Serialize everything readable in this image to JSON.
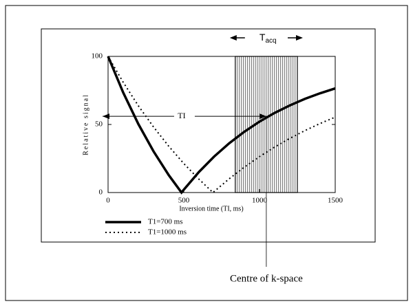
{
  "chart_data": {
    "type": "line",
    "xlabel": "Inversion time (TI, ms)",
    "ylabel": "Relative signal",
    "xlim": [
      0,
      1500
    ],
    "xticks": [
      0,
      500,
      1000,
      1500
    ],
    "ylim": [
      0,
      100
    ],
    "yticks": [
      0,
      50,
      100
    ],
    "series": [
      {
        "name": "T1=700 ms",
        "color": "#000000",
        "style": "solid",
        "x": [
          0,
          100,
          200,
          300,
          400,
          485,
          500,
          600,
          700,
          800,
          900,
          1000,
          1100,
          1200,
          1300,
          1400,
          1500
        ],
        "values": [
          100,
          73.4,
          50.3,
          30.3,
          12.9,
          0,
          2.1,
          15.1,
          26.4,
          36.2,
          44.7,
          52.1,
          58.5,
          64.0,
          68.8,
          72.9,
          76.5
        ]
      },
      {
        "name": "T1=1000 ms",
        "color": "#000000",
        "style": "dotted",
        "x": [
          0,
          100,
          200,
          300,
          400,
          500,
          600,
          693,
          700,
          800,
          900,
          1000,
          1100,
          1200,
          1300,
          1400,
          1500
        ],
        "values": [
          100,
          81.0,
          63.7,
          48.2,
          34.1,
          21.3,
          9.8,
          0,
          0.7,
          10.1,
          18.7,
          26.4,
          33.4,
          39.8,
          45.5,
          50.7,
          55.4
        ]
      }
    ],
    "acquisition_window": [
      840,
      1250
    ],
    "acquisition_label": {
      "main": "T",
      "sub": "acq"
    },
    "k_space_centre": 1045,
    "k_space_label": "Centre of k-space",
    "ti_label": "TI",
    "ti_arrow_level": 56
  }
}
